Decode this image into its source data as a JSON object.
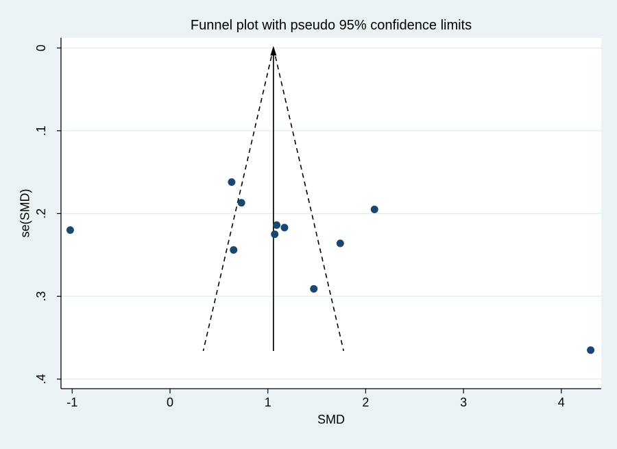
{
  "figure": {
    "background_color": "#eaf2f3",
    "plot_background_color": "#ffffff",
    "grid_color": "#e3eef0",
    "axis_color": "#000000",
    "marker_color": "#1a476f",
    "funnel_line_color": "#000000"
  },
  "chart_data": {
    "type": "scatter",
    "title": "Funnel plot with pseudo 95% confidence limits",
    "xlabel": "SMD",
    "ylabel": "se(SMD)",
    "x_ticks": [
      -1,
      0,
      1,
      2,
      3,
      4
    ],
    "x_tick_labels": [
      "-1",
      "0",
      "1",
      "2",
      "3",
      "4"
    ],
    "y_ticks": [
      0,
      0.1,
      0.2,
      0.3,
      0.4
    ],
    "y_tick_labels": [
      "0",
      ".1",
      ".2",
      ".3",
      ".4"
    ],
    "xlim": [
      -1.11,
      4.41
    ],
    "ylim_se_top_to_bottom": [
      0,
      0.412
    ],
    "grid": true,
    "y_axis_inverted": true,
    "points": [
      {
        "smd": -1.02,
        "se": 0.22
      },
      {
        "smd": 0.63,
        "se": 0.162
      },
      {
        "smd": 0.73,
        "se": 0.187
      },
      {
        "smd": 0.65,
        "se": 0.244
      },
      {
        "smd": 1.07,
        "se": 0.225
      },
      {
        "smd": 1.09,
        "se": 0.214
      },
      {
        "smd": 1.17,
        "se": 0.217
      },
      {
        "smd": 1.74,
        "se": 0.236
      },
      {
        "smd": 2.09,
        "se": 0.195
      },
      {
        "smd": 1.47,
        "se": 0.291
      },
      {
        "smd": 4.3,
        "se": 0.365
      }
    ],
    "pooled_estimate_smd": 1.057,
    "funnel": {
      "apex_smd": 1.057,
      "z": 1.96,
      "max_se": 0.366
    }
  }
}
